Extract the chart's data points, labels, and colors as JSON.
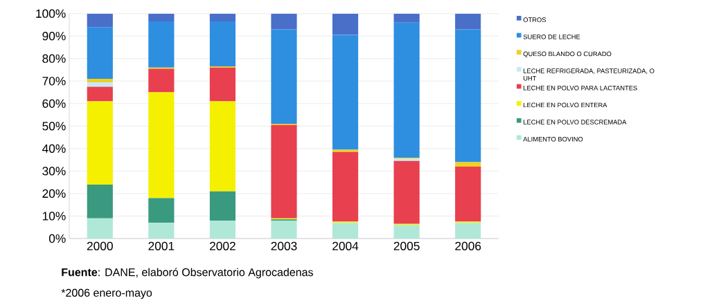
{
  "chart_data": {
    "type": "bar",
    "stacked": true,
    "categories": [
      "2000",
      "2001",
      "2002",
      "2003",
      "2004",
      "2005",
      "2006"
    ],
    "series": [
      {
        "name": "ALIMENTO BOVINO",
        "color": "#b0e8d8",
        "values": [
          9,
          7,
          8,
          8,
          7,
          6,
          7
        ]
      },
      {
        "name": "LECHE EN POLVO DESCREMADA",
        "color": "#3a9a80",
        "values": [
          15,
          11,
          13,
          0.5,
          0,
          0,
          0
        ]
      },
      {
        "name": "LECHE EN POLVO ENTERA",
        "color": "#f5f000",
        "values": [
          37,
          47,
          40,
          0.5,
          0.5,
          0.5,
          0.5
        ]
      },
      {
        "name": "LECHE EN POLVO PARA LACTANTES",
        "color": "#e8404f",
        "values": [
          6.5,
          10.5,
          15,
          41.5,
          31,
          28,
          24.5
        ]
      },
      {
        "name": "LECHE REFRIGERADA, PASTEURIZADA, O UHT",
        "color": "#c8e8f8",
        "values": [
          2,
          0,
          0,
          0,
          0,
          1,
          0
        ]
      },
      {
        "name": "QUESO BLANDO O CURADO",
        "color": "#f0d020",
        "values": [
          1.5,
          0.5,
          0.5,
          0.5,
          1,
          0.5,
          2
        ]
      },
      {
        "name": "SUERO DE LECHE",
        "color": "#2e8fe0",
        "values": [
          23,
          20.5,
          20,
          42,
          51,
          60,
          59
        ]
      },
      {
        "name": "OTROS",
        "color": "#4a6fc8",
        "values": [
          6,
          3.5,
          3.5,
          7,
          9.5,
          4,
          7
        ]
      }
    ],
    "ylim": [
      0,
      100
    ],
    "yticks": [
      {
        "value": 0,
        "label": "0%"
      },
      {
        "value": 10,
        "label": "10%"
      },
      {
        "value": 20,
        "label": "20%"
      },
      {
        "value": 30,
        "label": "30%"
      },
      {
        "value": 40,
        "label": "40%"
      },
      {
        "value": 50,
        "label": "50%"
      },
      {
        "value": 60,
        "label": "60%"
      },
      {
        "value": 70,
        "label": "70%"
      },
      {
        "value": 80,
        "label": "80%"
      },
      {
        "value": 90,
        "label": "90%"
      },
      {
        "value": 100,
        "label": "100%"
      }
    ],
    "grid": "y",
    "legend": "right",
    "annotations": [
      "**Fuente**: DANE, elaboró Observatorio Agrocadenas",
      "*2006 enero-mayo"
    ]
  }
}
